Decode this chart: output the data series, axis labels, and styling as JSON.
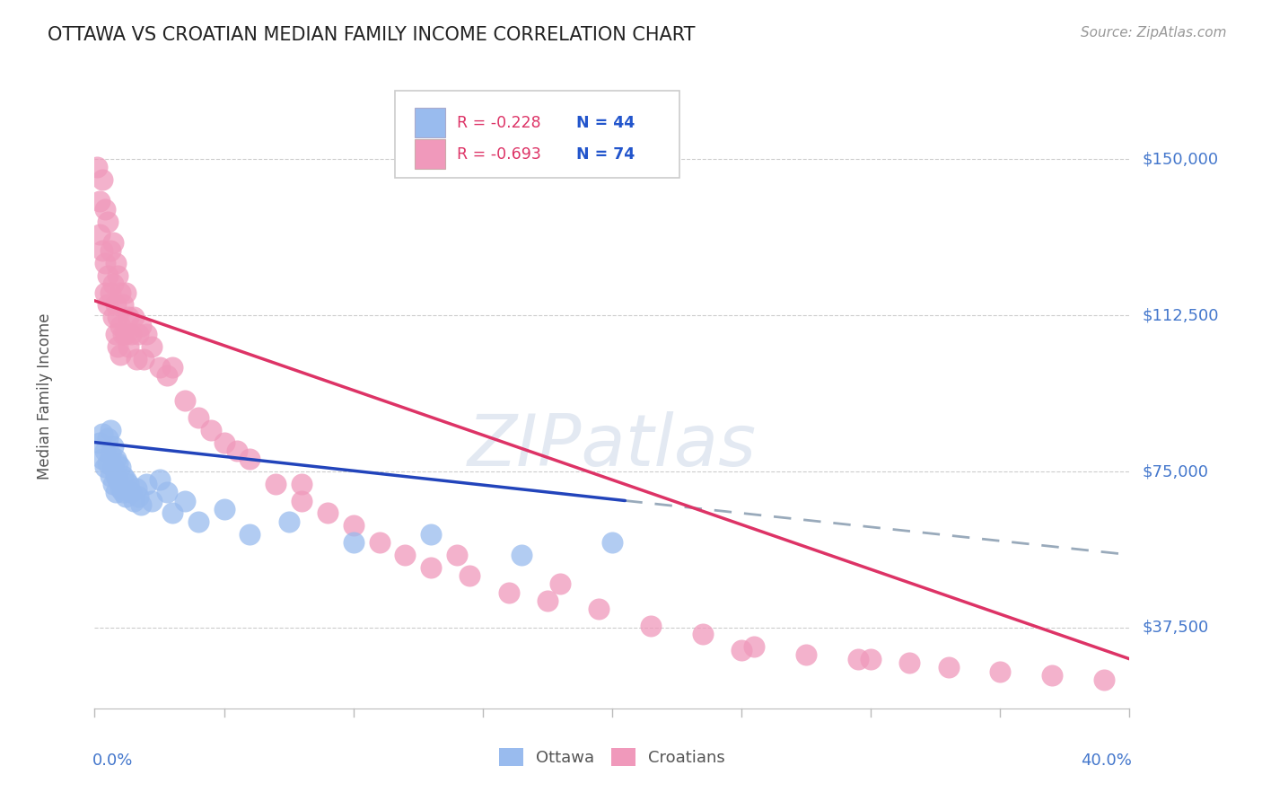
{
  "title": "OTTAWA VS CROATIAN MEDIAN FAMILY INCOME CORRELATION CHART",
  "source": "Source: ZipAtlas.com",
  "ylabel": "Median Family Income",
  "yticks": [
    37500,
    75000,
    112500,
    150000
  ],
  "ytick_labels": [
    "$37,500",
    "$75,000",
    "$112,500",
    "$150,000"
  ],
  "xmin": 0.0,
  "xmax": 0.4,
  "ymin": 18000,
  "ymax": 168000,
  "ottawa_color": "#99bbee",
  "croatians_color": "#f099bb",
  "ottawa_line_color": "#2244bb",
  "croatians_line_color": "#dd3366",
  "dashed_line_color": "#99aabb",
  "title_color": "#222222",
  "source_color": "#999999",
  "label_color": "#4477cc",
  "watermark_color": "#ccd8e8",
  "grid_color": "#cccccc",
  "legend_r1": "R = -0.228",
  "legend_n1": "N = 44",
  "legend_r2": "R = -0.693",
  "legend_n2": "N = 74",
  "ottawa_x": [
    0.002,
    0.003,
    0.003,
    0.004,
    0.004,
    0.005,
    0.005,
    0.006,
    0.006,
    0.006,
    0.007,
    0.007,
    0.007,
    0.008,
    0.008,
    0.008,
    0.009,
    0.009,
    0.01,
    0.01,
    0.011,
    0.011,
    0.012,
    0.012,
    0.013,
    0.014,
    0.015,
    0.016,
    0.017,
    0.018,
    0.02,
    0.022,
    0.025,
    0.028,
    0.03,
    0.035,
    0.04,
    0.05,
    0.06,
    0.075,
    0.1,
    0.13,
    0.165,
    0.2
  ],
  "ottawa_y": [
    82000,
    84000,
    78000,
    80000,
    76000,
    83000,
    77000,
    85000,
    79000,
    74000,
    81000,
    76000,
    72000,
    78000,
    74000,
    70000,
    77000,
    73000,
    76000,
    71000,
    74000,
    70000,
    73000,
    69000,
    72000,
    70000,
    68000,
    71000,
    69000,
    67000,
    72000,
    68000,
    73000,
    70000,
    65000,
    68000,
    63000,
    66000,
    60000,
    63000,
    58000,
    60000,
    55000,
    58000
  ],
  "croatians_x": [
    0.001,
    0.002,
    0.002,
    0.003,
    0.003,
    0.004,
    0.004,
    0.004,
    0.005,
    0.005,
    0.005,
    0.006,
    0.006,
    0.007,
    0.007,
    0.007,
    0.008,
    0.008,
    0.008,
    0.009,
    0.009,
    0.009,
    0.01,
    0.01,
    0.01,
    0.011,
    0.011,
    0.012,
    0.012,
    0.013,
    0.013,
    0.014,
    0.015,
    0.016,
    0.017,
    0.018,
    0.019,
    0.02,
    0.022,
    0.025,
    0.028,
    0.03,
    0.035,
    0.04,
    0.045,
    0.05,
    0.055,
    0.06,
    0.07,
    0.08,
    0.09,
    0.1,
    0.11,
    0.12,
    0.13,
    0.145,
    0.16,
    0.175,
    0.195,
    0.215,
    0.235,
    0.255,
    0.275,
    0.295,
    0.315,
    0.33,
    0.35,
    0.37,
    0.39,
    0.25,
    0.18,
    0.08,
    0.14,
    0.3
  ],
  "croatians_y": [
    148000,
    140000,
    132000,
    145000,
    128000,
    138000,
    125000,
    118000,
    135000,
    122000,
    115000,
    128000,
    118000,
    130000,
    120000,
    112000,
    125000,
    115000,
    108000,
    122000,
    112000,
    105000,
    118000,
    110000,
    103000,
    115000,
    108000,
    118000,
    108000,
    112000,
    105000,
    108000,
    112000,
    102000,
    108000,
    110000,
    102000,
    108000,
    105000,
    100000,
    98000,
    100000,
    92000,
    88000,
    85000,
    82000,
    80000,
    78000,
    72000,
    68000,
    65000,
    62000,
    58000,
    55000,
    52000,
    50000,
    46000,
    44000,
    42000,
    38000,
    36000,
    33000,
    31000,
    30000,
    29000,
    28000,
    27000,
    26000,
    25000,
    32000,
    48000,
    72000,
    55000,
    30000
  ],
  "blue_line_x0": 0.0,
  "blue_line_x1": 0.205,
  "blue_line_y0": 82000,
  "blue_line_y1": 68000,
  "pink_line_x0": 0.0,
  "pink_line_x1": 0.4,
  "pink_line_y0": 116000,
  "pink_line_y1": 30000,
  "dash_line_x0": 0.205,
  "dash_line_x1": 0.4,
  "dash_line_y0": 68000,
  "dash_line_y1": 55000
}
